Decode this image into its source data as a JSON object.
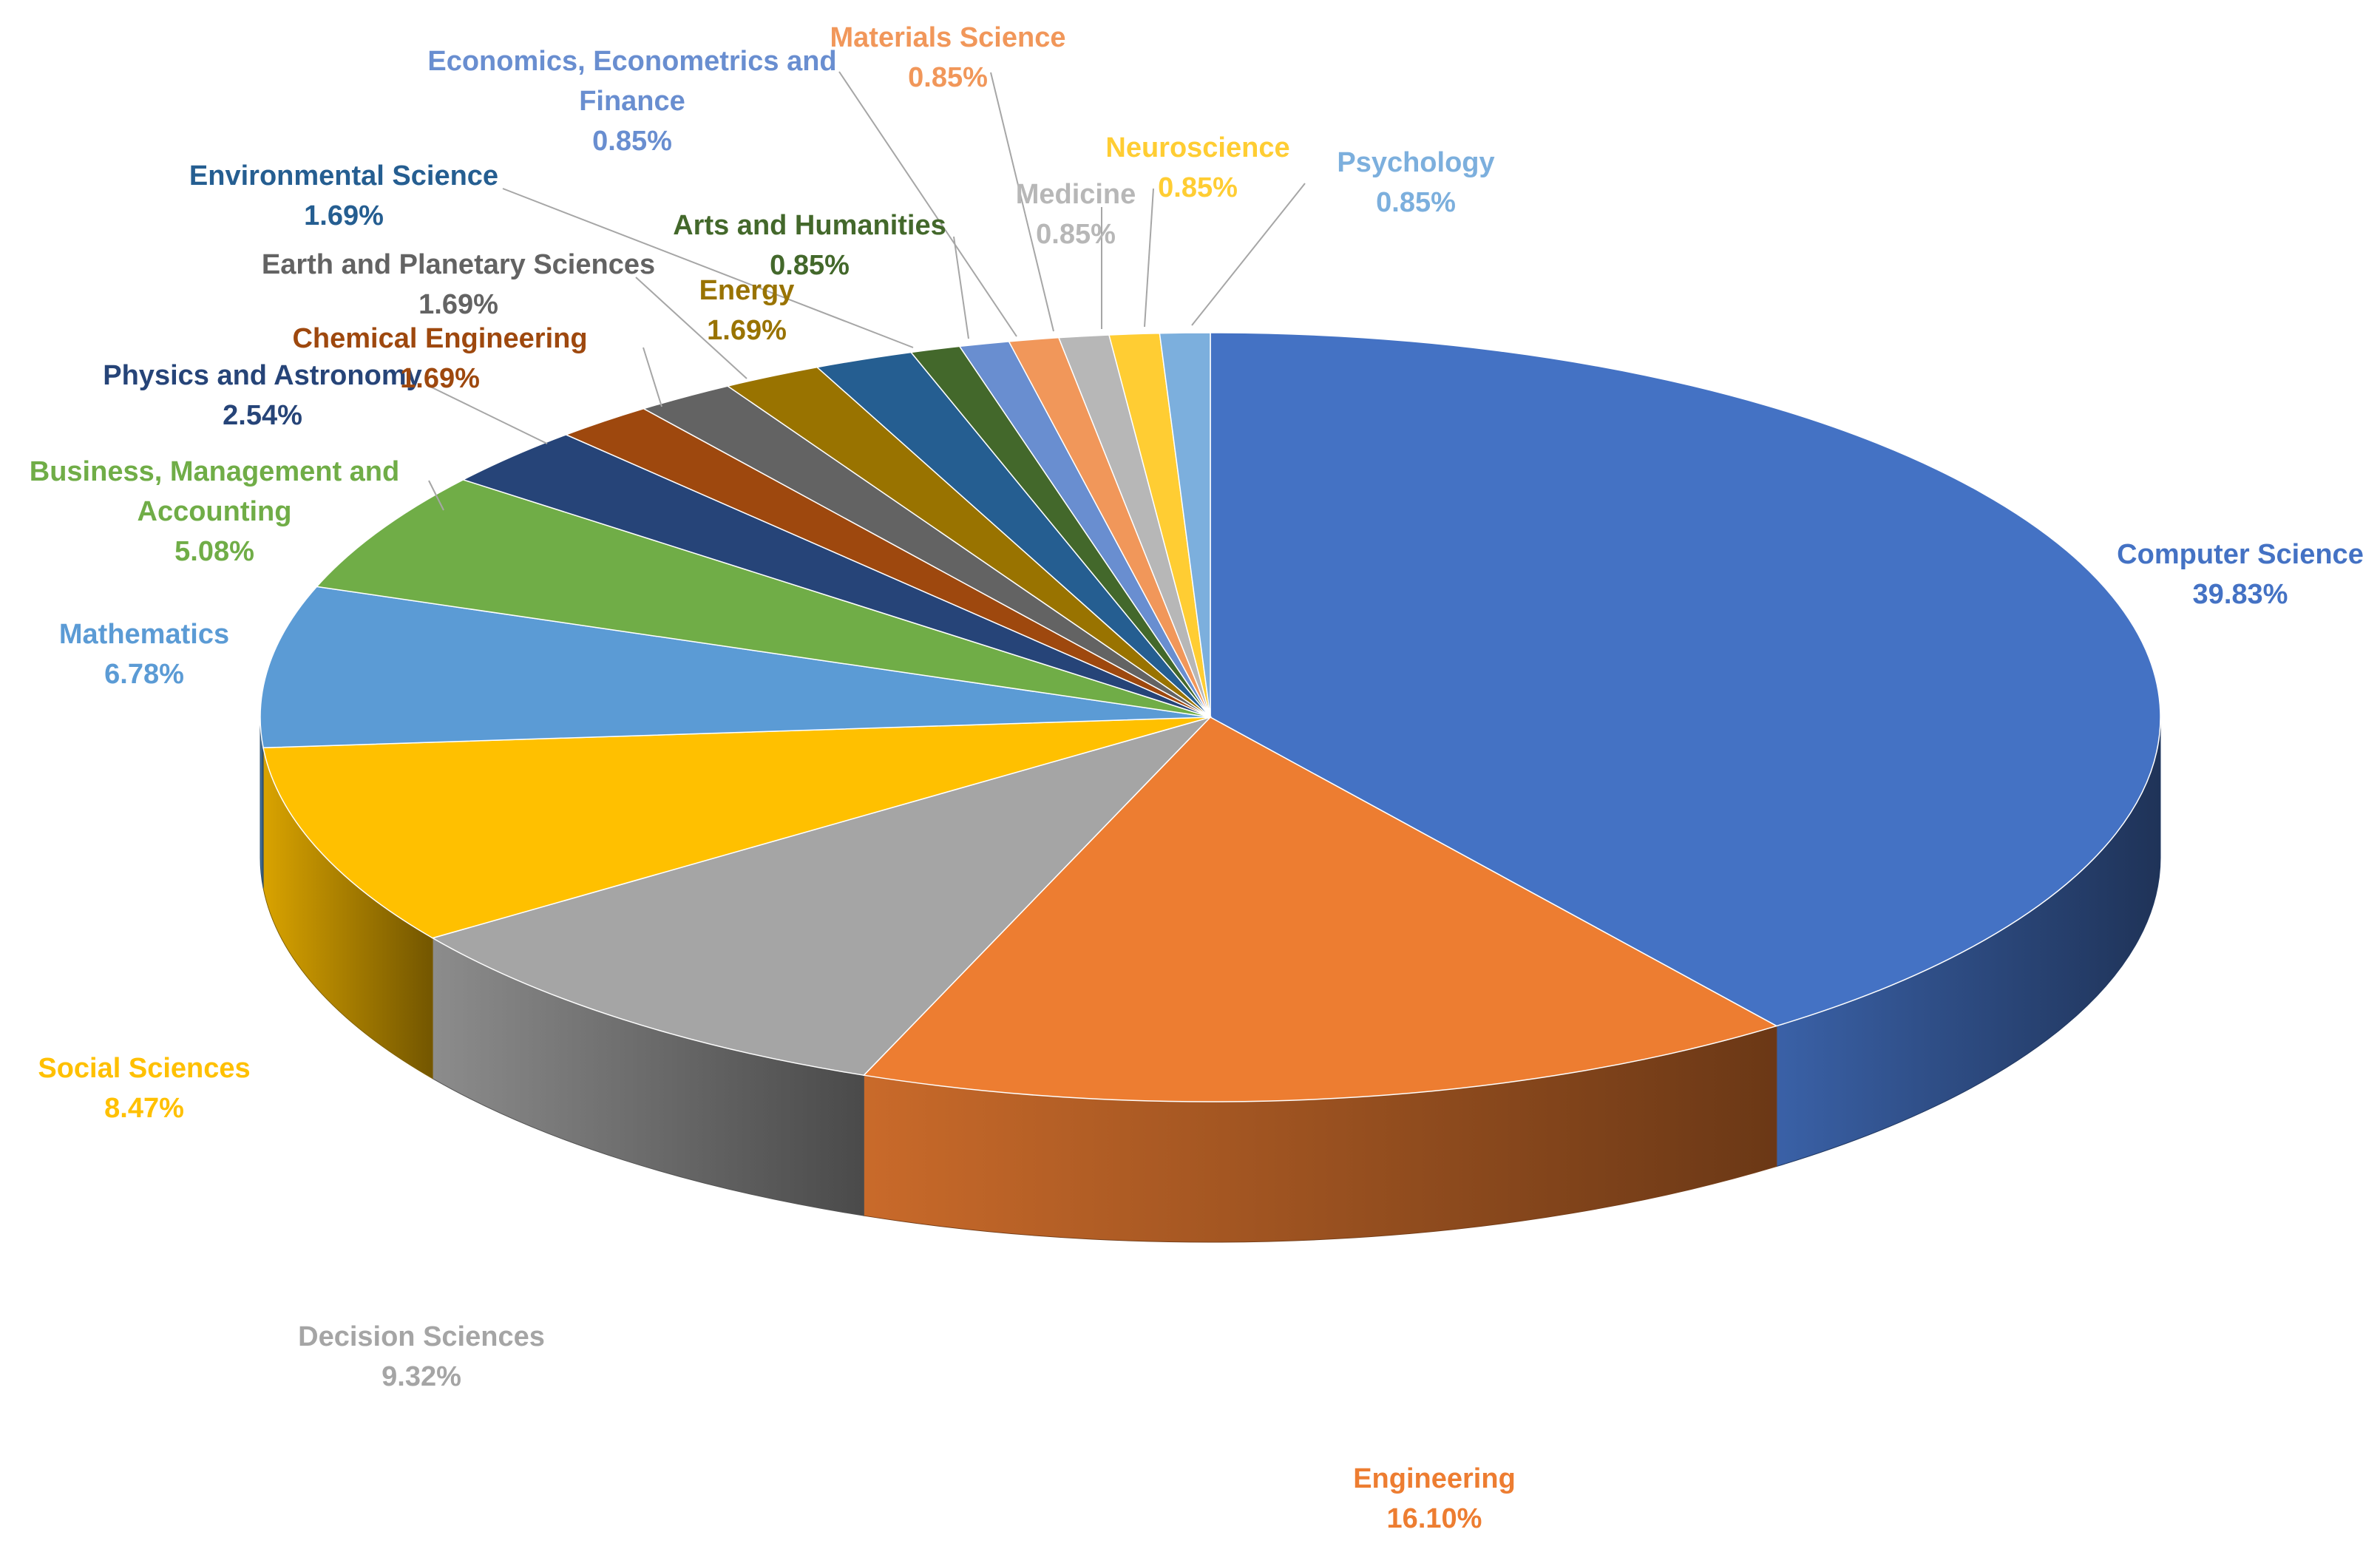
{
  "chart_data": {
    "type": "pie",
    "style": "3d",
    "title": "",
    "slices": [
      {
        "label": "Computer Science",
        "value": "39.83%",
        "pct": 39.83,
        "color": "#4472C4",
        "label_color": "#4472C4"
      },
      {
        "label": "Engineering",
        "value": "16.10%",
        "pct": 16.1,
        "color": "#ED7D31",
        "label_color": "#ED7D31"
      },
      {
        "label": "Decision Sciences",
        "value": "9.32%",
        "pct": 9.32,
        "color": "#A5A5A5",
        "label_color": "#A5A5A5"
      },
      {
        "label": "Social Sciences",
        "value": "8.47%",
        "pct": 8.47,
        "color": "#FFC000",
        "label_color": "#FFC000"
      },
      {
        "label": "Mathematics",
        "value": "6.78%",
        "pct": 6.78,
        "color": "#5B9BD5",
        "label_color": "#5B9BD5"
      },
      {
        "label": "Business, Management and Accounting",
        "value": "5.08%",
        "pct": 5.08,
        "color": "#70AD47",
        "label_color": "#70AD47"
      },
      {
        "label": "Physics and Astronomy",
        "value": "2.54%",
        "pct": 2.54,
        "color": "#264478",
        "label_color": "#264478"
      },
      {
        "label": "Chemical Engineering",
        "value": "1.69%",
        "pct": 1.69,
        "color": "#9E480E",
        "label_color": "#9E480E"
      },
      {
        "label": "Earth and Planetary Sciences",
        "value": "1.69%",
        "pct": 1.69,
        "color": "#636363",
        "label_color": "#636363"
      },
      {
        "label": "Energy",
        "value": "1.69%",
        "pct": 1.69,
        "color": "#997300",
        "label_color": "#997300"
      },
      {
        "label": "Environmental Science",
        "value": "1.69%",
        "pct": 1.69,
        "color": "#255E91",
        "label_color": "#255E91"
      },
      {
        "label": "Arts and Humanities",
        "value": "0.85%",
        "pct": 0.85,
        "color": "#43682B",
        "label_color": "#43682B"
      },
      {
        "label": "Economics, Econometrics and Finance",
        "value": "0.85%",
        "pct": 0.85,
        "color": "#698ED0",
        "label_color": "#698ED0"
      },
      {
        "label": "Materials Science",
        "value": "0.85%",
        "pct": 0.85,
        "color": "#F1975A",
        "label_color": "#F1975A"
      },
      {
        "label": "Medicine",
        "value": "0.85%",
        "pct": 0.85,
        "color": "#B7B7B7",
        "label_color": "#B7B7B7"
      },
      {
        "label": "Neuroscience",
        "value": "0.85%",
        "pct": 0.85,
        "color": "#FFCD33",
        "label_color": "#FFCD33"
      },
      {
        "label": "Psychology",
        "value": "0.85%",
        "pct": 0.85,
        "color": "#7CAFDD",
        "label_color": "#7CAFDD"
      }
    ]
  }
}
